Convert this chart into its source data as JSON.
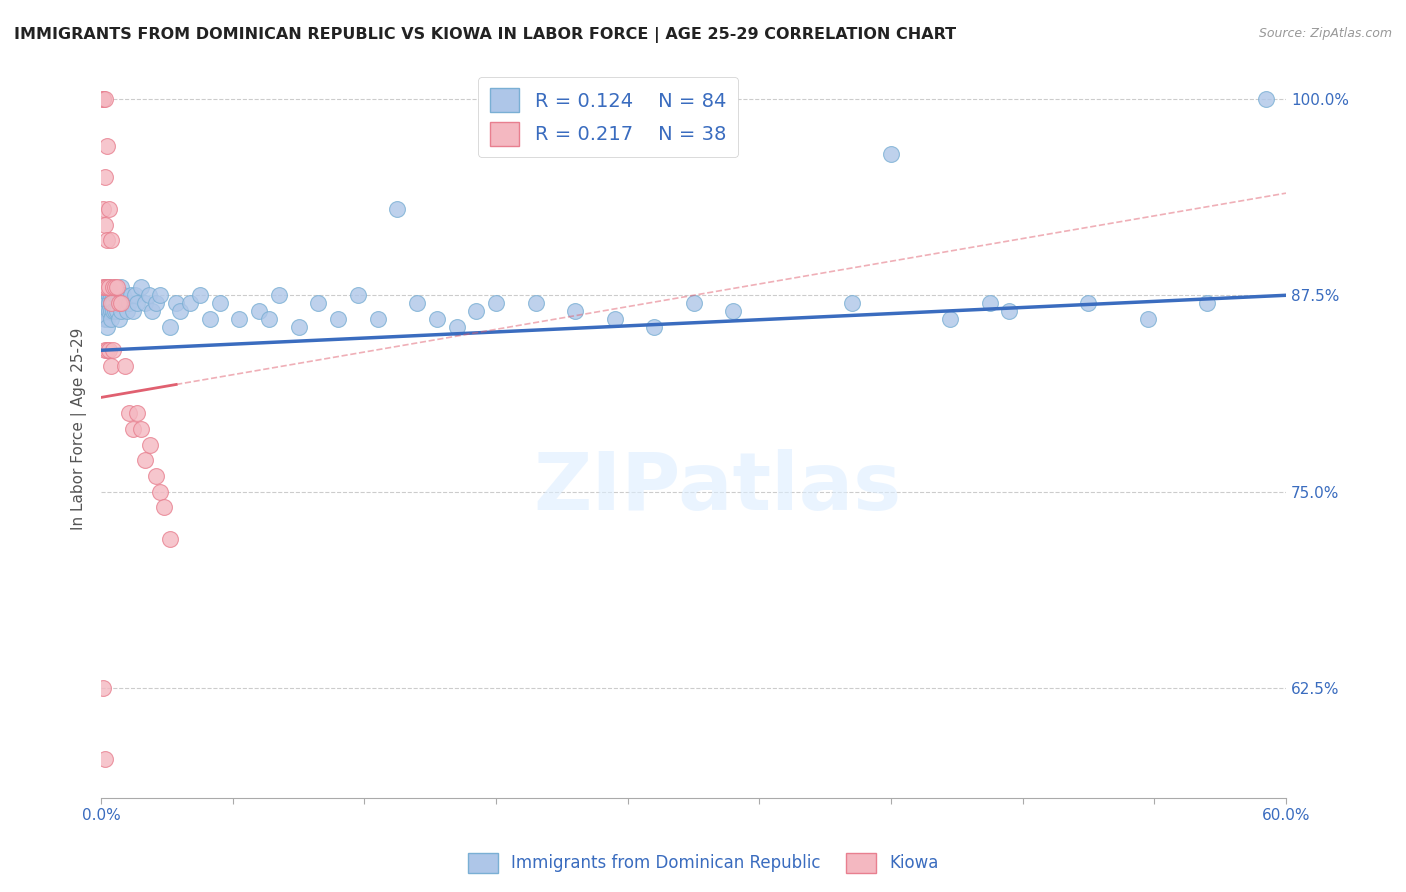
{
  "title": "IMMIGRANTS FROM DOMINICAN REPUBLIC VS KIOWA IN LABOR FORCE | AGE 25-29 CORRELATION CHART",
  "source": "Source: ZipAtlas.com",
  "ylabel": "In Labor Force | Age 25-29",
  "ytick_labels": [
    "100.0%",
    "87.5%",
    "75.0%",
    "62.5%"
  ],
  "ytick_values": [
    1.0,
    0.875,
    0.75,
    0.625
  ],
  "xmin": 0.0,
  "xmax": 0.6,
  "ymin": 0.555,
  "ymax": 1.025,
  "blue_R": 0.124,
  "blue_N": 84,
  "pink_R": 0.217,
  "pink_N": 38,
  "blue_color": "#aec6e8",
  "blue_edge_color": "#7aafd4",
  "pink_color": "#f4b8c1",
  "pink_edge_color": "#e87f8f",
  "blue_line_color": "#3a6cbf",
  "pink_line_color": "#e06070",
  "legend_R_color": "#3a6cbf",
  "title_color": "#333333",
  "right_axis_color": "#3a6cbf",
  "watermark": "ZIPatlas",
  "blue_line_x0": 0.0,
  "blue_line_y0": 0.84,
  "blue_line_x1": 0.6,
  "blue_line_y1": 0.875,
  "pink_line_x0": 0.0,
  "pink_line_y0": 0.81,
  "pink_line_x1": 0.6,
  "pink_line_y1": 0.94,
  "blue_points_x": [
    0.001,
    0.001,
    0.001,
    0.001,
    0.002,
    0.002,
    0.002,
    0.002,
    0.002,
    0.003,
    0.003,
    0.003,
    0.003,
    0.003,
    0.004,
    0.004,
    0.004,
    0.004,
    0.005,
    0.005,
    0.005,
    0.005,
    0.006,
    0.006,
    0.006,
    0.007,
    0.007,
    0.008,
    0.008,
    0.009,
    0.009,
    0.01,
    0.01,
    0.011,
    0.012,
    0.013,
    0.014,
    0.015,
    0.016,
    0.017,
    0.018,
    0.02,
    0.022,
    0.024,
    0.026,
    0.028,
    0.03,
    0.035,
    0.038,
    0.04,
    0.045,
    0.05,
    0.055,
    0.06,
    0.07,
    0.08,
    0.085,
    0.09,
    0.1,
    0.11,
    0.12,
    0.13,
    0.14,
    0.15,
    0.16,
    0.17,
    0.18,
    0.19,
    0.2,
    0.22,
    0.24,
    0.26,
    0.28,
    0.3,
    0.32,
    0.38,
    0.4,
    0.43,
    0.45,
    0.46,
    0.5,
    0.53,
    0.56,
    0.59
  ],
  "blue_points_y": [
    0.875,
    0.875,
    0.87,
    0.865,
    0.88,
    0.875,
    0.87,
    0.865,
    0.86,
    0.875,
    0.87,
    0.865,
    0.86,
    0.855,
    0.88,
    0.875,
    0.87,
    0.865,
    0.875,
    0.87,
    0.865,
    0.86,
    0.875,
    0.87,
    0.865,
    0.875,
    0.865,
    0.875,
    0.865,
    0.875,
    0.86,
    0.88,
    0.865,
    0.875,
    0.87,
    0.865,
    0.87,
    0.875,
    0.865,
    0.875,
    0.87,
    0.88,
    0.87,
    0.875,
    0.865,
    0.87,
    0.875,
    0.855,
    0.87,
    0.865,
    0.87,
    0.875,
    0.86,
    0.87,
    0.86,
    0.865,
    0.86,
    0.875,
    0.855,
    0.87,
    0.86,
    0.875,
    0.86,
    0.93,
    0.87,
    0.86,
    0.855,
    0.865,
    0.87,
    0.87,
    0.865,
    0.86,
    0.855,
    0.87,
    0.865,
    0.87,
    0.965,
    0.86,
    0.87,
    0.865,
    0.87,
    0.86,
    0.87,
    1.0
  ],
  "pink_points_x": [
    0.001,
    0.001,
    0.001,
    0.001,
    0.002,
    0.002,
    0.002,
    0.002,
    0.002,
    0.003,
    0.003,
    0.003,
    0.003,
    0.004,
    0.004,
    0.004,
    0.005,
    0.005,
    0.005,
    0.006,
    0.006,
    0.007,
    0.008,
    0.009,
    0.01,
    0.012,
    0.014,
    0.016,
    0.018,
    0.02,
    0.022,
    0.025,
    0.028,
    0.03,
    0.032,
    0.035,
    0.001,
    0.002
  ],
  "pink_points_y": [
    1.0,
    1.0,
    0.93,
    0.88,
    1.0,
    0.95,
    0.92,
    0.88,
    0.84,
    0.97,
    0.91,
    0.88,
    0.84,
    0.93,
    0.88,
    0.84,
    0.91,
    0.87,
    0.83,
    0.88,
    0.84,
    0.88,
    0.88,
    0.87,
    0.87,
    0.83,
    0.8,
    0.79,
    0.8,
    0.79,
    0.77,
    0.78,
    0.76,
    0.75,
    0.74,
    0.72,
    0.625,
    0.58
  ]
}
